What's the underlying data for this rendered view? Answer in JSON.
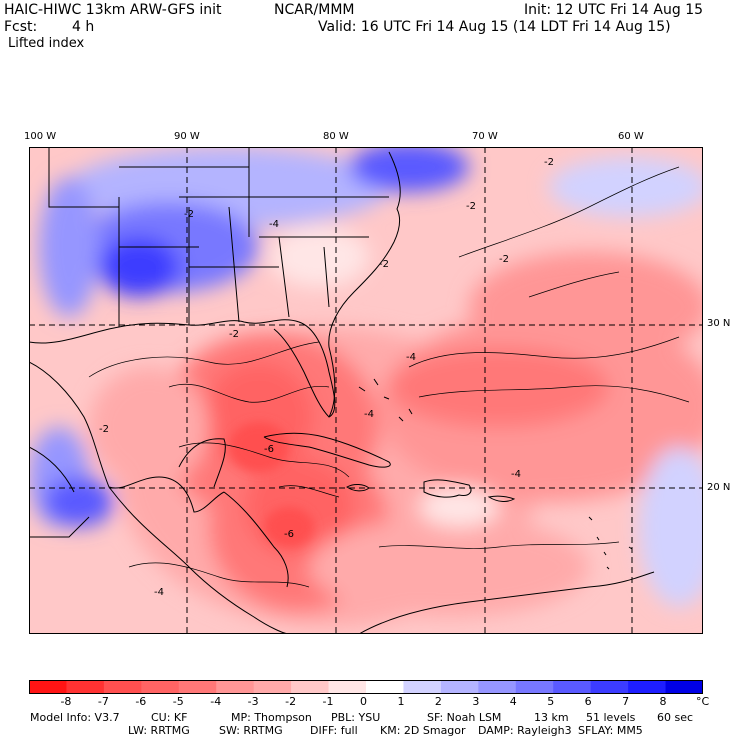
{
  "header": {
    "model_title": "HAIC-HIWC 13km ARW-GFS init",
    "org": "NCAR/MMM",
    "init": "Init: 12 UTC Fri 14 Aug 15",
    "fcst_label": "Fcst:",
    "fcst_value": "4 h",
    "valid": "Valid: 16 UTC Fri 14 Aug 15 (14 LDT Fri 14 Aug 15)",
    "field": "Lifted index"
  },
  "map": {
    "lon_labels": [
      "100 W",
      "90 W",
      "80 W",
      "70 W",
      "60 W"
    ],
    "lat_labels": [
      "30 N",
      "20 N"
    ],
    "contour_labels": [
      "-2",
      "-2",
      "-2",
      "-2",
      "-2",
      "-4",
      "-4",
      "-4",
      "-4",
      "-6",
      "-6",
      "-2",
      "-2",
      "-4"
    ]
  },
  "legend": {
    "ticks": [
      "-8",
      "-7",
      "-6",
      "-5",
      "-4",
      "-3",
      "-2",
      "-1",
      "0",
      "1",
      "2",
      "3",
      "4",
      "5",
      "6",
      "7",
      "8"
    ],
    "unit": "°C",
    "colors": [
      "#ff1414",
      "#ff3232",
      "#ff5050",
      "#ff6464",
      "#ff7878",
      "#ff9696",
      "#ffaaaa",
      "#ffc8c8",
      "#ffe6e6",
      "#ffffff",
      "#d2d2ff",
      "#b4b4ff",
      "#9696ff",
      "#7878ff",
      "#5a5aff",
      "#3c3cff",
      "#1e1eff",
      "#0000e6"
    ]
  },
  "footer": {
    "line1": [
      "Model Info: V3.7",
      "CU: KF",
      "MP: Thompson",
      "PBL: YSU",
      "SF: Noah LSM",
      "13 km",
      "51 levels",
      "60 sec"
    ],
    "line2": [
      "LW: RRTMG",
      "SW: RRTMG",
      "DIFF: full",
      "KM: 2D Smagor",
      "DAMP: Rayleigh3",
      "SFLAY: MM5"
    ]
  }
}
